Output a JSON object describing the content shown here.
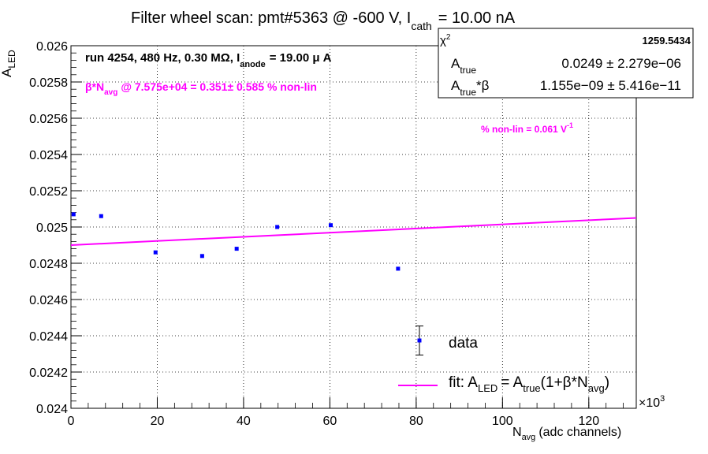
{
  "chart_data": {
    "type": "scatter",
    "title_main": "Filter wheel scan: pmt#5363 @  -600 V, I",
    "title_sub": "cath",
    "title_tail": "= 10.00 nA",
    "xlabel_main": "N",
    "xlabel_sub": "avg",
    "xlabel_tail": "(adc channels)",
    "ylabel_main": "A",
    "ylabel_sub": "LED",
    "x_multiplier": "×10",
    "x_multiplier_exp": "3",
    "xlim": [
      0,
      131
    ],
    "ylim": [
      0.024,
      0.026
    ],
    "grid": true,
    "x_ticks": [
      0,
      20,
      40,
      60,
      80,
      100,
      120
    ],
    "x_tick_labels": [
      "0",
      "20",
      "40",
      "60",
      "80",
      "100",
      "120"
    ],
    "y_ticks": [
      0.024,
      0.0242,
      0.0244,
      0.0246,
      0.0248,
      0.025,
      0.0252,
      0.0254,
      0.0256,
      0.0258,
      0.026
    ],
    "y_tick_labels": [
      "0.024",
      "0.0242",
      "0.0244",
      "0.0246",
      "0.0248",
      "0.025",
      "0.0252",
      "0.0254",
      "0.0256",
      "0.0258",
      "0.026"
    ],
    "series": [
      {
        "name": "data",
        "x": [
          0.6,
          7.0,
          19.6,
          30.4,
          38.4,
          47.8,
          60.2,
          75.8
        ],
        "y": [
          0.02507,
          0.02506,
          0.02486,
          0.02484,
          0.02488,
          0.025,
          0.02501,
          0.02477
        ],
        "color": "#0000ff"
      },
      {
        "name": "fit: A_LED = A_true(1+β*N_avg)",
        "type": "line",
        "x": [
          0,
          131
        ],
        "y": [
          0.0249,
          0.02505
        ],
        "color": "#ff00ff"
      }
    ],
    "annotations": {
      "run_info_a": "run 4254, 480 Hz, 0.30 MΩ, I",
      "run_info_sub": "anode",
      "run_info_b": "= 19.00 μ A",
      "beta_a": "β*N",
      "beta_sub": "avg",
      "beta_b": "@ 7.575e+04 = 0.351± 0.585 % non-lin",
      "nonlin_a": "% non-lin = 0.061 V",
      "nonlin_sup": "-1"
    },
    "stats_box": {
      "chi2_label": "χ",
      "chi2_sup": "2",
      "chi2_value": "1259.5434",
      "row1_label": "A",
      "row1_sub": "true",
      "row1_value": "0.0249 ± 2.279e−06",
      "row2_label": "A",
      "row2_sub": "true",
      "row2_tail": "*β",
      "row2_value": "1.155e−09 ± 5.416e−11"
    },
    "legend": {
      "data_label": "data",
      "data_errorbar_y": 0.024374,
      "data_errorbar_err": 8e-05,
      "fit_label_a": "fit: A",
      "fit_sub1": "LED",
      "fit_label_b": "= A",
      "fit_sub2": "true",
      "fit_label_c": "(1+β*N",
      "fit_sub3": "avg",
      "fit_label_d": ")"
    },
    "colors": {
      "data": "#0000ff",
      "fit": "#ff00ff",
      "annotation": "#ff00ff",
      "axis": "#000000"
    }
  }
}
